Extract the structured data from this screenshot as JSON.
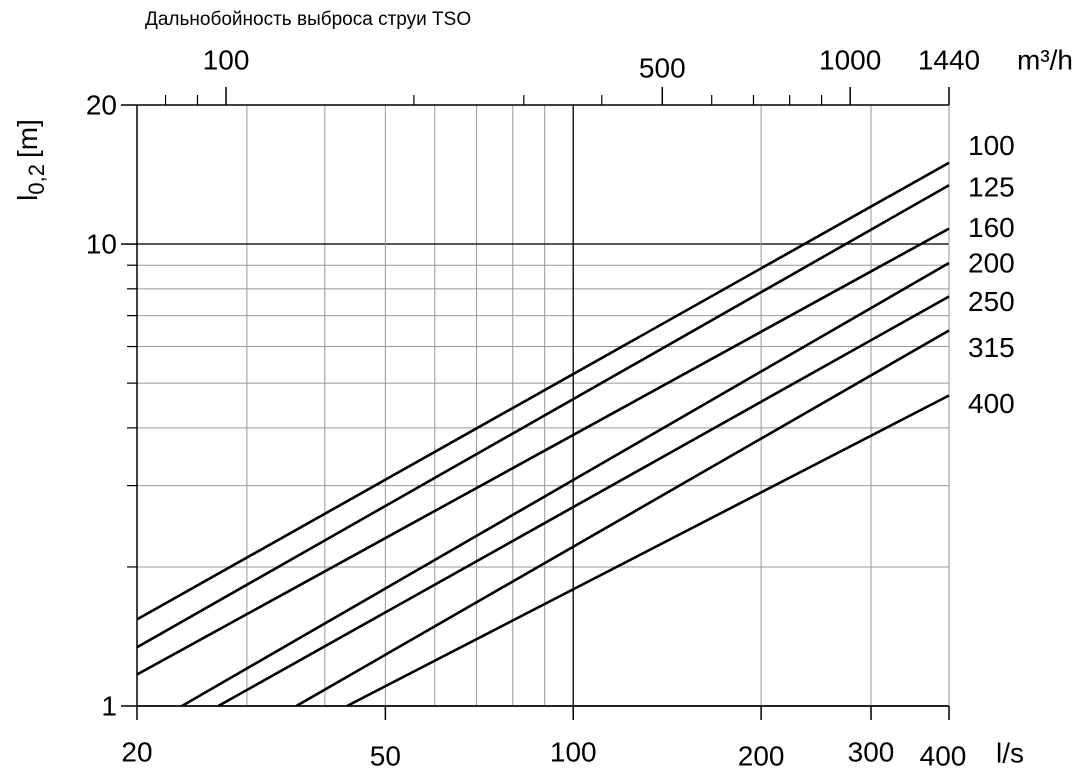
{
  "chart_data": {
    "type": "line",
    "title": "Дальнобойность выброса струи TSO",
    "y_label": {
      "main": "l",
      "sub": "0,2",
      "unit": "[m]"
    },
    "x_label": "l/s",
    "x2_label": "m³/h",
    "log_x": true,
    "log_y": true,
    "grid": true,
    "xlim": [
      20,
      400
    ],
    "xticks": [
      20,
      50,
      100,
      200,
      300,
      400
    ],
    "xminorticks": [
      30,
      40,
      60,
      70,
      80,
      90
    ],
    "x2lim": [
      72,
      1440
    ],
    "x2ticks": [
      100,
      500,
      1000,
      1440
    ],
    "x2minorticks": [
      80,
      90,
      200,
      300,
      400,
      600,
      700,
      800,
      900
    ],
    "ylim": [
      1,
      20
    ],
    "yticks": [
      1,
      10,
      20
    ],
    "yminorticks": [
      2,
      3,
      4,
      5,
      6,
      7,
      8,
      9
    ],
    "series": [
      {
        "name": "100",
        "color": "#000000",
        "x": [
          20,
          400
        ],
        "values": [
          1.54,
          15
        ]
      },
      {
        "name": "125",
        "color": "#000000",
        "x": [
          20,
          400
        ],
        "values": [
          1.34,
          13.4
        ]
      },
      {
        "name": "160",
        "color": "#000000",
        "x": [
          20,
          400
        ],
        "values": [
          1.17,
          10.8
        ]
      },
      {
        "name": "200",
        "color": "#000000",
        "x": [
          23.6,
          400
        ],
        "values": [
          1,
          9.1
        ]
      },
      {
        "name": "250",
        "color": "#000000",
        "x": [
          27,
          400
        ],
        "values": [
          1,
          7.7
        ]
      },
      {
        "name": "315",
        "color": "#000000",
        "x": [
          36,
          400
        ],
        "values": [
          1,
          6.5
        ]
      },
      {
        "name": "400",
        "color": "#000000",
        "x": [
          43.4,
          400
        ],
        "values": [
          1,
          4.7
        ]
      }
    ]
  }
}
